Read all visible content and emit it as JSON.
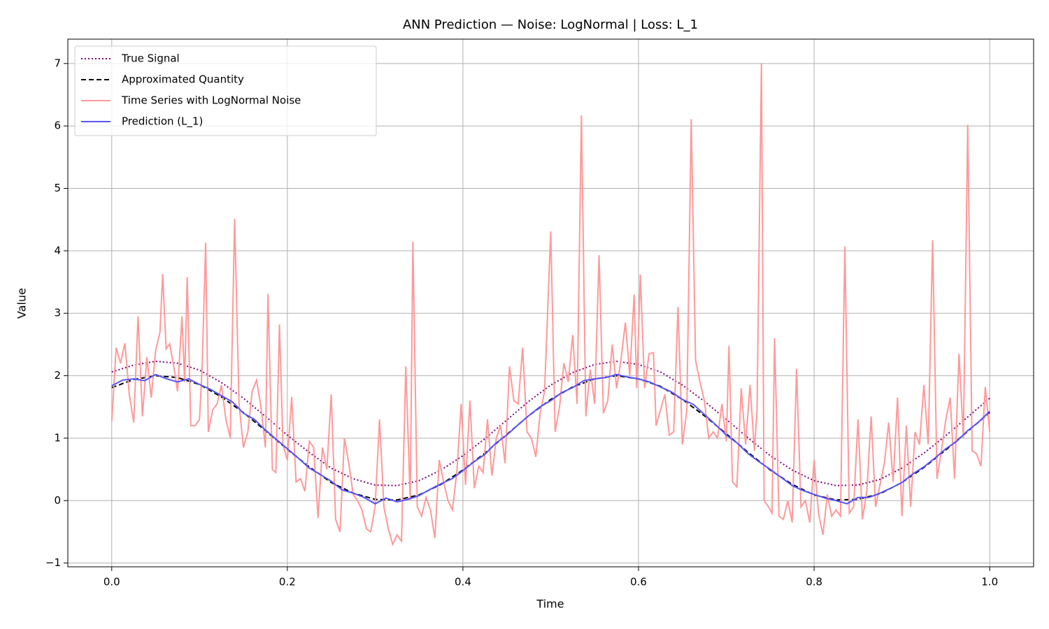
{
  "chart_data": {
    "type": "line",
    "title": "ANN Prediction — Noise: LogNormal | Loss: L_1",
    "x_label": "Time",
    "y_label": "Value",
    "xlim": [
      -0.05,
      1.05
    ],
    "ylim": [
      -1.06,
      7.39
    ],
    "xticks": [
      {
        "value": 0,
        "label": "0.0"
      },
      0.2,
      0.4,
      0.6,
      0.8,
      {
        "value": 1,
        "label": "1.0"
      }
    ],
    "yticks": [
      {
        "value": -1,
        "label": "−1"
      },
      0,
      1,
      2,
      3,
      4,
      5,
      6,
      7
    ],
    "grid": true,
    "legend": "upper-left",
    "series": [
      {
        "name": "True Signal",
        "color": "#800080",
        "style": "dotted",
        "x": [
          0,
          0.025,
          0.05,
          0.075,
          0.1,
          0.125,
          0.15,
          0.175,
          0.2,
          0.225,
          0.25,
          0.275,
          0.3,
          0.325,
          0.35,
          0.375,
          0.4,
          0.425,
          0.45,
          0.475,
          0.5,
          0.525,
          0.55,
          0.575,
          0.6,
          0.625,
          0.65,
          0.675,
          0.7,
          0.725,
          0.75,
          0.775,
          0.8,
          0.825,
          0.85,
          0.875,
          0.9,
          0.925,
          0.95,
          0.975,
          1
        ],
        "values": [
          2.06,
          2.17,
          2.23,
          2.2,
          2.09,
          1.89,
          1.64,
          1.35,
          1.05,
          0.77,
          0.52,
          0.35,
          0.25,
          0.24,
          0.32,
          0.49,
          0.72,
          0.99,
          1.29,
          1.59,
          1.85,
          2.05,
          2.18,
          2.23,
          2.18,
          2.06,
          1.85,
          1.59,
          1.3,
          1.0,
          0.72,
          0.49,
          0.32,
          0.24,
          0.25,
          0.34,
          0.52,
          0.76,
          1.04,
          1.34,
          1.64
        ]
      },
      {
        "name": "Approximated Quantity",
        "color": "#000000",
        "style": "dashed",
        "x": [
          0,
          0.025,
          0.05,
          0.075,
          0.1,
          0.125,
          0.15,
          0.175,
          0.2,
          0.225,
          0.25,
          0.275,
          0.3,
          0.325,
          0.35,
          0.375,
          0.4,
          0.425,
          0.45,
          0.475,
          0.5,
          0.525,
          0.55,
          0.575,
          0.6,
          0.625,
          0.65,
          0.675,
          0.7,
          0.725,
          0.75,
          0.775,
          0.8,
          0.825,
          0.85,
          0.875,
          0.9,
          0.925,
          0.95,
          0.975,
          1
        ],
        "values": [
          1.81,
          1.94,
          2.0,
          1.97,
          1.86,
          1.66,
          1.41,
          1.12,
          0.82,
          0.54,
          0.29,
          0.12,
          0.02,
          0.01,
          0.09,
          0.26,
          0.49,
          0.76,
          1.06,
          1.36,
          1.62,
          1.82,
          1.95,
          2.0,
          1.95,
          1.83,
          1.62,
          1.36,
          1.07,
          0.77,
          0.49,
          0.26,
          0.09,
          0.01,
          0.02,
          0.11,
          0.29,
          0.53,
          0.81,
          1.11,
          1.41
        ]
      },
      {
        "name": "Time Series with LogNormal Noise",
        "color": "#ff9999",
        "style": "solid",
        "x": [
          0,
          0.005,
          0.01,
          0.015,
          0.02,
          0.025,
          0.03,
          0.035,
          0.04,
          0.045,
          0.05,
          0.055,
          0.058,
          0.062,
          0.066,
          0.07,
          0.075,
          0.08,
          0.083,
          0.086,
          0.09,
          0.095,
          0.1,
          0.103,
          0.107,
          0.11,
          0.115,
          0.12,
          0.125,
          0.13,
          0.135,
          0.14,
          0.145,
          0.15,
          0.155,
          0.16,
          0.165,
          0.17,
          0.175,
          0.178,
          0.183,
          0.187,
          0.191,
          0.195,
          0.2,
          0.205,
          0.21,
          0.215,
          0.22,
          0.225,
          0.23,
          0.235,
          0.24,
          0.245,
          0.25,
          0.255,
          0.26,
          0.265,
          0.27,
          0.275,
          0.28,
          0.285,
          0.29,
          0.295,
          0.3,
          0.305,
          0.31,
          0.315,
          0.32,
          0.325,
          0.33,
          0.335,
          0.34,
          0.343,
          0.348,
          0.353,
          0.358,
          0.363,
          0.368,
          0.373,
          0.378,
          0.383,
          0.388,
          0.393,
          0.398,
          0.403,
          0.408,
          0.413,
          0.418,
          0.423,
          0.428,
          0.433,
          0.438,
          0.443,
          0.448,
          0.453,
          0.458,
          0.463,
          0.468,
          0.473,
          0.478,
          0.483,
          0.488,
          0.493,
          0.5,
          0.505,
          0.51,
          0.515,
          0.52,
          0.525,
          0.53,
          0.535,
          0.54,
          0.545,
          0.55,
          0.555,
          0.56,
          0.565,
          0.57,
          0.575,
          0.58,
          0.585,
          0.59,
          0.595,
          0.598,
          0.602,
          0.607,
          0.612,
          0.617,
          0.62,
          0.625,
          0.63,
          0.635,
          0.64,
          0.645,
          0.65,
          0.655,
          0.66,
          0.665,
          0.67,
          0.675,
          0.68,
          0.685,
          0.69,
          0.695,
          0.7,
          0.703,
          0.707,
          0.712,
          0.717,
          0.722,
          0.727,
          0.732,
          0.735,
          0.74,
          0.743,
          0.748,
          0.752,
          0.755,
          0.76,
          0.765,
          0.77,
          0.775,
          0.78,
          0.785,
          0.79,
          0.795,
          0.8,
          0.805,
          0.81,
          0.815,
          0.82,
          0.825,
          0.83,
          0.835,
          0.84,
          0.845,
          0.85,
          0.855,
          0.86,
          0.865,
          0.87,
          0.875,
          0.88,
          0.885,
          0.89,
          0.895,
          0.9,
          0.905,
          0.91,
          0.915,
          0.92,
          0.925,
          0.93,
          0.935,
          0.94,
          0.945,
          0.95,
          0.955,
          0.96,
          0.965,
          0.97,
          0.975,
          0.98,
          0.985,
          0.99,
          0.995,
          1
        ],
        "values": [
          1.27,
          2.45,
          2.2,
          2.52,
          1.7,
          1.25,
          2.95,
          1.35,
          2.3,
          1.65,
          2.4,
          2.7,
          3.63,
          2.43,
          2.51,
          2.2,
          1.75,
          2.95,
          1.9,
          3.58,
          1.2,
          1.2,
          1.3,
          2.15,
          4.13,
          1.1,
          1.45,
          1.55,
          1.85,
          1.3,
          1.0,
          4.51,
          1.55,
          0.85,
          1.1,
          1.75,
          1.93,
          1.5,
          0.85,
          3.31,
          0.5,
          0.45,
          2.82,
          0.9,
          0.65,
          1.66,
          0.3,
          0.35,
          0.15,
          0.95,
          0.85,
          -0.28,
          0.85,
          0.5,
          1.7,
          -0.3,
          -0.5,
          1.0,
          0.6,
          0.1,
          0.0,
          -0.15,
          -0.45,
          -0.5,
          -0.1,
          1.3,
          -0.1,
          -0.45,
          -0.7,
          -0.55,
          -0.65,
          2.15,
          0.0,
          4.15,
          -0.1,
          -0.25,
          0.05,
          -0.15,
          -0.6,
          0.65,
          0.3,
          0.0,
          -0.15,
          0.45,
          1.55,
          0.25,
          1.6,
          0.2,
          0.55,
          0.45,
          1.3,
          0.4,
          1.0,
          1.2,
          0.6,
          2.15,
          1.6,
          1.55,
          2.45,
          1.1,
          1.0,
          0.7,
          1.4,
          1.75,
          4.31,
          1.1,
          1.5,
          2.2,
          1.9,
          2.65,
          1.55,
          6.17,
          1.35,
          2.1,
          1.55,
          3.93,
          1.4,
          1.6,
          2.5,
          1.8,
          2.25,
          2.85,
          2.0,
          3.3,
          1.8,
          3.62,
          1.8,
          2.35,
          2.37,
          1.2,
          1.45,
          1.7,
          1.05,
          1.1,
          3.1,
          0.9,
          1.45,
          6.11,
          2.25,
          1.9,
          1.6,
          1.0,
          1.1,
          1.0,
          1.55,
          0.95,
          2.48,
          0.3,
          0.22,
          1.8,
          0.9,
          1.85,
          0.8,
          1.45,
          7.0,
          0.0,
          -0.1,
          -0.2,
          2.6,
          -0.25,
          -0.3,
          0.0,
          -0.35,
          2.11,
          -0.1,
          0.0,
          -0.35,
          0.65,
          -0.2,
          -0.55,
          0.1,
          -0.25,
          -0.15,
          -0.25,
          4.07,
          -0.2,
          -0.1,
          1.3,
          -0.3,
          0.15,
          1.35,
          -0.1,
          0.25,
          0.6,
          1.25,
          0.3,
          1.65,
          -0.25,
          1.2,
          -0.1,
          1.1,
          0.9,
          1.85,
          0.9,
          4.17,
          0.35,
          0.8,
          1.3,
          1.65,
          0.35,
          2.35,
          1.0,
          6.02,
          0.8,
          0.75,
          0.55,
          1.82,
          1.1
        ]
      },
      {
        "name": "Prediction (L_1)",
        "color": "#5555ff",
        "style": "solid",
        "x": [
          0,
          0.0125,
          0.025,
          0.0375,
          0.05,
          0.0625,
          0.075,
          0.0875,
          0.1,
          0.1125,
          0.125,
          0.1375,
          0.15,
          0.1625,
          0.175,
          0.1875,
          0.2,
          0.2125,
          0.225,
          0.2375,
          0.25,
          0.2625,
          0.275,
          0.2875,
          0.3,
          0.3125,
          0.325,
          0.3375,
          0.35,
          0.3625,
          0.375,
          0.3875,
          0.4,
          0.4125,
          0.425,
          0.4375,
          0.45,
          0.4625,
          0.475,
          0.4875,
          0.5,
          0.5125,
          0.525,
          0.5375,
          0.55,
          0.5625,
          0.575,
          0.5875,
          0.6,
          0.6125,
          0.625,
          0.6375,
          0.65,
          0.6625,
          0.675,
          0.6875,
          0.7,
          0.7125,
          0.725,
          0.7375,
          0.75,
          0.7625,
          0.775,
          0.7875,
          0.8,
          0.8125,
          0.825,
          0.8375,
          0.85,
          0.8625,
          0.875,
          0.8875,
          0.9,
          0.9125,
          0.925,
          0.9375,
          0.95,
          0.9625,
          0.975,
          0.9875,
          1
        ],
        "values": [
          1.84,
          1.93,
          1.95,
          1.92,
          2.02,
          1.95,
          1.9,
          1.95,
          1.86,
          1.78,
          1.68,
          1.58,
          1.4,
          1.3,
          1.13,
          0.98,
          0.83,
          0.68,
          0.52,
          0.42,
          0.31,
          0.17,
          0.12,
          0.05,
          -0.05,
          0.04,
          -0.02,
          0.02,
          0.08,
          0.18,
          0.27,
          0.35,
          0.48,
          0.62,
          0.74,
          0.92,
          1.05,
          1.21,
          1.36,
          1.5,
          1.6,
          1.73,
          1.81,
          1.92,
          1.95,
          1.97,
          2.02,
          1.98,
          1.95,
          1.9,
          1.82,
          1.74,
          1.62,
          1.54,
          1.38,
          1.22,
          1.05,
          0.92,
          0.75,
          0.62,
          0.5,
          0.37,
          0.24,
          0.16,
          0.1,
          0.04,
          0.0,
          -0.05,
          0.05,
          0.05,
          0.12,
          0.2,
          0.29,
          0.43,
          0.54,
          0.68,
          0.83,
          0.95,
          1.12,
          1.26,
          1.43
        ]
      }
    ]
  }
}
